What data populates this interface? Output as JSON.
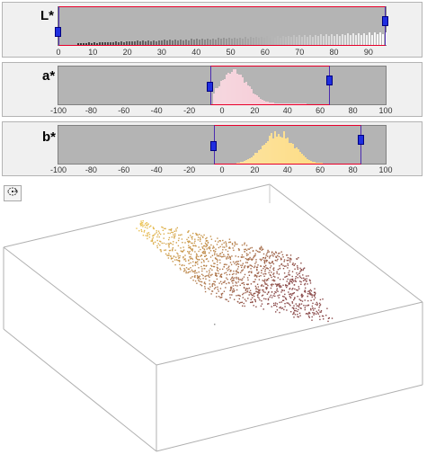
{
  "channels": [
    {
      "key": "L",
      "label": "L*",
      "ticks": [
        "0",
        "10",
        "20",
        "30",
        "40",
        "50",
        "60",
        "70",
        "80",
        "90"
      ],
      "tick_values": [
        0,
        10,
        20,
        30,
        40,
        50,
        60,
        70,
        80,
        90
      ],
      "range": [
        0,
        95
      ],
      "selection": [
        0,
        95
      ],
      "histogram_color_start": "#2b2b2b",
      "histogram_color_end": "#ffffff"
    },
    {
      "key": "a",
      "label": "a*",
      "ticks": [
        "-100",
        "-80",
        "-60",
        "-40",
        "-20",
        "0",
        "20",
        "40",
        "60",
        "80",
        "100"
      ],
      "tick_values": [
        -100,
        -80,
        -60,
        -40,
        -20,
        0,
        20,
        40,
        60,
        80,
        100
      ],
      "range": [
        -100,
        100
      ],
      "selection": [
        -7,
        66
      ],
      "histogram_color_start": "#f4f4f4",
      "histogram_color_end": "#f7b8c8"
    },
    {
      "key": "b",
      "label": "b*",
      "ticks": [
        "-100",
        "-80",
        "-60",
        "-40",
        "-20",
        "0",
        "20",
        "40",
        "60",
        "80",
        "100"
      ],
      "tick_values": [
        -100,
        -80,
        -60,
        -40,
        -20,
        0,
        20,
        40,
        60,
        80,
        100
      ],
      "range": [
        -100,
        100
      ],
      "selection": [
        -5,
        85
      ],
      "histogram_color_start": "#f8f0d8",
      "histogram_color_end": "#ffd870"
    }
  ],
  "colors": {
    "panel_bg": "#f0f0f0",
    "hist_bg": "#b4b4b4",
    "selection_border": "#e8002b",
    "selection_side": "#4b2bb0",
    "handle": "#1f2ee0",
    "cube_edge": "#b0b0b0"
  },
  "toolbar": {
    "rotate_icon": "rotate-3d-icon"
  }
}
